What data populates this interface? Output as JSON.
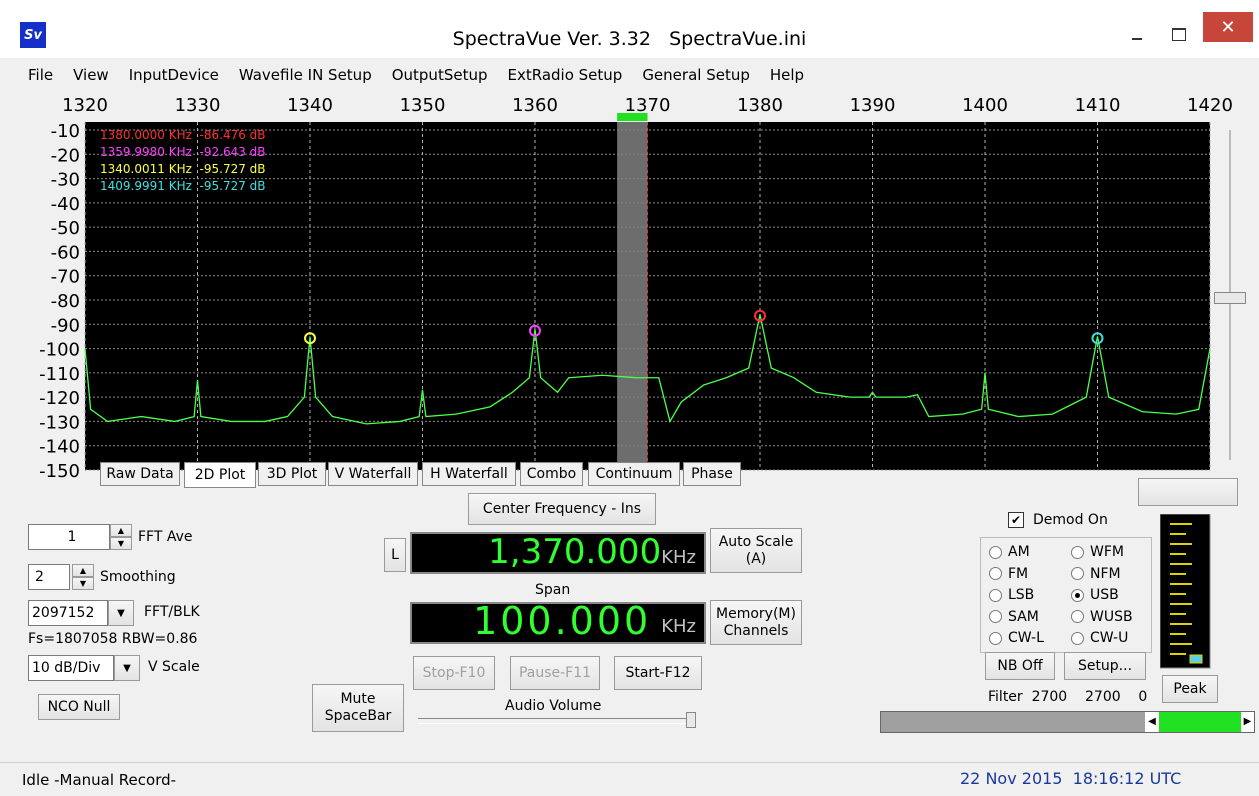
{
  "window": {
    "icon": "Sv",
    "title": "SpectraVue Ver. 3.32   SpectraVue.ini"
  },
  "menu": [
    "File",
    "View",
    "InputDevice",
    "Wavefile IN Setup",
    "OutputSetup",
    "ExtRadio Setup",
    "General Setup",
    "Help"
  ],
  "chart_data": {
    "type": "line",
    "xlim": [
      1320,
      1420
    ],
    "xticks": [
      1320,
      1330,
      1340,
      1350,
      1360,
      1370,
      1380,
      1390,
      1400,
      1410,
      1420
    ],
    "ylim": [
      -150,
      -10
    ],
    "yticks": [
      -10,
      -20,
      -30,
      -40,
      -50,
      -60,
      -70,
      -80,
      -90,
      -100,
      -110,
      -120,
      -130,
      -140,
      -150
    ],
    "grid": true,
    "center": 1370,
    "passband": [
      1367.3,
      1370
    ],
    "x": [
      1320,
      1320.5,
      1322,
      1325,
      1328,
      1329.7,
      1330,
      1330.3,
      1333,
      1336,
      1338,
      1339.5,
      1340,
      1340.5,
      1342,
      1345,
      1348,
      1349.7,
      1350,
      1350.3,
      1353,
      1356,
      1358,
      1359.5,
      1360,
      1360.5,
      1362,
      1363,
      1366,
      1369,
      1371,
      1372,
      1373,
      1375,
      1377,
      1379,
      1380,
      1381,
      1383,
      1385,
      1388,
      1389.7,
      1390,
      1390.3,
      1393,
      1394,
      1395,
      1398,
      1399.7,
      1400,
      1400.3,
      1403,
      1406,
      1409,
      1410,
      1411,
      1414,
      1417,
      1419,
      1420
    ],
    "series": [
      {
        "color": "#4cff4c",
        "values": [
          -100,
          -125,
          -130,
          -128,
          -130,
          -128,
          -113,
          -128,
          -130,
          -130,
          -128,
          -120,
          -95,
          -120,
          -128,
          -131,
          -130,
          -128,
          -117,
          -128,
          -127,
          -124,
          -118,
          -112,
          -92,
          -112,
          -118,
          -112,
          -111,
          -112,
          -112,
          -130,
          -122,
          -115,
          -112,
          -108,
          -86,
          -108,
          -112,
          -118,
          -120,
          -120,
          -118,
          -120,
          -120,
          -119,
          -128,
          -127,
          -125,
          -110,
          -125,
          -128,
          -127,
          -120,
          -95,
          -120,
          -126,
          -127,
          -125,
          -100
        ]
      }
    ],
    "markers": [
      {
        "label": "1380.0000 KHz  -86.476 dB",
        "x": 1380,
        "y": -86.476,
        "color": "#ff3030"
      },
      {
        "label": "1359.9980 KHz  -92.643 dB",
        "x": 1359.998,
        "y": -92.643,
        "color": "#ff40ff"
      },
      {
        "label": "1340.0011 KHz  -95.727 dB",
        "x": 1340.0011,
        "y": -95.727,
        "color": "#ffff40"
      },
      {
        "label": "1409.9991 KHz  -95.727 dB",
        "x": 1409.9991,
        "y": -95.727,
        "color": "#40e0e0"
      }
    ]
  },
  "tabs": [
    {
      "label": "Raw Data",
      "selected": false
    },
    {
      "label": "2D Plot",
      "selected": true
    },
    {
      "label": "3D Plot",
      "selected": false
    },
    {
      "label": "V Waterfall",
      "selected": false
    },
    {
      "label": "H Waterfall",
      "selected": false
    },
    {
      "label": "Combo",
      "selected": false
    },
    {
      "label": "Continuum",
      "selected": false
    },
    {
      "label": "Phase",
      "selected": false
    }
  ],
  "controls": {
    "fft_ave": {
      "value": 1,
      "label": "FFT Ave"
    },
    "smoothing": {
      "value": 2,
      "label": "Smoothing"
    },
    "fft_blk": {
      "value": 2097152,
      "label": "FFT/BLK"
    },
    "fs_rbw": "Fs=1807058 RBW=0.86",
    "v_scale": {
      "value": "10 dB/Div",
      "label": "V Scale"
    },
    "nco_null": "NCO Null",
    "center_frequency_button": "Center Frequency - Ins",
    "l_button": "L",
    "center_frequency": {
      "value": "1,370.000",
      "unit": "KHz"
    },
    "auto_scale": "Auto Scale\n(A)",
    "span_label": "Span",
    "span": {
      "value": "100.000",
      "unit": "KHz"
    },
    "memory": "Memory(M)\nChannels",
    "stop": "Stop-F10",
    "pause": "Pause-F11",
    "start": "Start-F12",
    "mute": "Mute\nSpaceBar",
    "audio_volume": "Audio Volume"
  },
  "demod": {
    "checkbox": "Demod On",
    "checked": true,
    "modes": [
      {
        "label": "AM",
        "selected": false
      },
      {
        "label": "WFM",
        "selected": false
      },
      {
        "label": "FM",
        "selected": false
      },
      {
        "label": "NFM",
        "selected": false
      },
      {
        "label": "LSB",
        "selected": false
      },
      {
        "label": "USB",
        "selected": true
      },
      {
        "label": "SAM",
        "selected": false
      },
      {
        "label": "WUSB",
        "selected": false
      },
      {
        "label": "CW-L",
        "selected": false
      },
      {
        "label": "CW-U",
        "selected": false
      }
    ],
    "nb": "NB Off",
    "setup": "Setup...",
    "peak": "Peak",
    "filter": "Filter  2700    2700    0"
  },
  "status": {
    "left": "Idle -Manual Record-",
    "right": "22 Nov 2015  18:16:12 UTC"
  }
}
